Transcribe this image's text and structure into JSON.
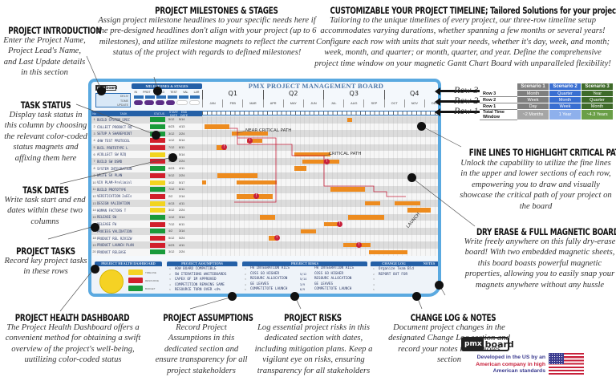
{
  "callouts": {
    "intro": {
      "title": "PROJECT INTRODUCTION",
      "text": "Enter the Project Name, Project Lead's Name, and Last Update details in this section"
    },
    "milestones": {
      "title": "PROJECT MILESTONES & STAGES",
      "text": "Assign project milestone headlines to your specific needs here if the pre-designed headlines don't align with your project (up to 6 milestones), and utilize milestone magnets to reflect the current status of the project with regards to defined milestones!"
    },
    "timeline": {
      "title": "CUSTOMIZABLE YOUR PROJECT TIMELINE; Tailored Solutions for your project needs",
      "text": "Tailoring to the unique timelines of every project, our three-row timeline setup accommodates varying durations, whether spanning a few months or several years! Configure each row with units that suit your needs, whether it's day, week, and month; week, month, and quarter; or month, quarter, and year. Define the comprehensive project time window on your magnetic Gantt Chart Board with unparalleled flexibility!"
    },
    "status": {
      "title": "TASK STATUS",
      "text": "Display task status in this column by choosing the relevant color-coded status magnets and affixing them here"
    },
    "dates": {
      "title": "TASK DATES",
      "text": "Write task start and end dates within these two columns"
    },
    "tasks": {
      "title": "PROJECT TASKS",
      "text": "Record key project tasks in these rows"
    },
    "health": {
      "title": "PROJECT HEALTH DASHBOARD",
      "text": "The Project Health Dashboard offers a convenient method for obtaining a swift overview of the project's well-being, uutilizing color-coded status"
    },
    "assumptions": {
      "title": "PROJECT ASSUMPTIONS",
      "text": "Record Project Assumptions in this dedicated section and ensure transparency for all project stakeholders"
    },
    "risks": {
      "title": "PROJECT RISKS",
      "text": "Log essential project risks in this dedicated section with dates, including mitigation plans. Keep a vigilant eye on risks, ensuring transparency for all stakeholders"
    },
    "changelog": {
      "title": "CHANGE LOG & NOTES",
      "text": "Document project changes in the designated Change Log section and record your notes in the Notes section"
    },
    "critical": {
      "title": "FINE LINES TO HIGHLIGHT CRITICAL PATH",
      "text": "Unlock the capability to utilize the fine lines in the upper and lower sections of each row, empowering you to draw and visually showcase the critical path of your project on the board"
    },
    "dryerase": {
      "title": "DRY ERASE & FULL MAGNETIC BOARD",
      "text": "Write freely anywhere on this fully dry-erase board! With two embedded magnetic sheets, this board boasts powerful magnetic properties, allowing you to easily snap your magnets anywhere without any hussle"
    }
  },
  "board": {
    "title": "PMX PROJECT MANAGEMENT BOARD",
    "logo": {
      "a": "pmx",
      "b": "board"
    },
    "intro_labels": [
      "DELIV",
      "TOME",
      "UPDATE"
    ],
    "milestones_head": "MILESTONES & STAGES",
    "milestone_labels": [
      "IN",
      "PRDT",
      "BUILD",
      "TEST",
      "VAL",
      "LAR"
    ],
    "quarters": [
      "Q1",
      "Q2",
      "Q3",
      "Q4"
    ],
    "months": [
      "JAN",
      "FEB",
      "MAR",
      "APR",
      "MAY",
      "JUN",
      "JUL",
      "AUG",
      "SEP",
      "OCT",
      "NOV",
      "DEC"
    ],
    "task_head": {
      "num": "No",
      "task": "TASK",
      "status": "STATUS",
      "start": "START DATE",
      "end": "END DATE"
    },
    "tasks": [
      {
        "n": "1",
        "name": "BUILD SYSTEM SPEC",
        "status": "#1a9a3a",
        "start": "5/12",
        "end": "5/14"
      },
      {
        "n": "2",
        "name": "COLLECT PRODUCT RQ",
        "status": "#1a9a3a",
        "start": "6/23",
        "end": "4/13"
      },
      {
        "n": "3",
        "name": "SETUP A SHAREPOINT",
        "status": "#1a9a3a",
        "start": "3/12",
        "end": "2/24"
      },
      {
        "n": "4",
        "name": "4HW TEST PROTOCOL",
        "status": "#d11f2c",
        "start": "1/12",
        "end": "5/14"
      },
      {
        "n": "5",
        "name": "BUIL PROTOTYPE L",
        "status": "#d11f2c",
        "start": "7/12",
        "end": "6/11"
      },
      {
        "n": "6",
        "name": "ACOLLECT SW RZQ",
        "status": "#f2d41f",
        "start": "4/2",
        "end": "5/14"
      },
      {
        "n": "7",
        "name": "BUILD SW DSMD",
        "status": "#d11f2c",
        "start": "5/12",
        "end": "2/24"
      },
      {
        "n": "8",
        "name": "SYSTEM INTEGRATION",
        "status": "#1a9a3a",
        "start": "6/23",
        "end": "4/11"
      },
      {
        "n": "9",
        "name": "WRITE SV PLAN",
        "status": "#d11f2c",
        "start": "5/12",
        "end": "2/24"
      },
      {
        "n": "10",
        "name": "VIV PLAM-Preliminl",
        "status": "#f2d41f",
        "start": "1/12",
        "end": "5/17"
      },
      {
        "n": "11",
        "name": "BUILD PROTOTYPE",
        "status": "#1a9a3a",
        "start": "7/12",
        "end": "6/11"
      },
      {
        "n": "12",
        "name": "VERIFICATION 2xECs",
        "status": "#d11f2c",
        "start": "2/2",
        "end": "2/14"
      },
      {
        "n": "13",
        "name": "DESIGN VALIDATION",
        "status": "#f2d41f",
        "start": "6/13",
        "end": "4/11"
      },
      {
        "n": "14",
        "name": "HOMAN FACTORS T",
        "status": "#f2d41f",
        "start": "3/12",
        "end": "2/24"
      },
      {
        "n": "15",
        "name": "RELEASE SW",
        "status": "#1a9a3a",
        "start": "1/12",
        "end": "3/14"
      },
      {
        "n": "16",
        "name": "RELEASE FW",
        "status": "#d11f2c",
        "start": "7/12",
        "end": "6/11"
      },
      {
        "n": "17",
        "name": "PROCESS VALIDATION",
        "status": "#1a9a3a",
        "start": "4/2",
        "end": "3/14"
      },
      {
        "n": "18",
        "name": "PRODUCT REL RZVIZW",
        "status": "#d11f2c",
        "start": "5/12",
        "end": "5/24"
      },
      {
        "n": "19",
        "name": "PRODUCT LAUNCH PLAN",
        "status": "#d11f2c",
        "start": "6/23",
        "end": "4/11"
      },
      {
        "n": "20",
        "name": "PRODUCT RELEASE",
        "status": "#1a9a3a",
        "start": "3/12",
        "end": "2/24"
      }
    ],
    "annotations": {
      "near_critical": "NEAR CRITICAL PATH",
      "critical": "CRITICAL PATH",
      "launch": "LAUNCH"
    },
    "health": {
      "head": "PROJECT HEALTH DASHBOARD",
      "gauge_label": "OVERALL STATUS",
      "labels": [
        "TIMELINE",
        "RESOURCE",
        "BUDGET"
      ]
    },
    "assumptions": {
      "head": "PROJECT ASSUMPTIONS",
      "items": [
        "HOW BOARD COMPATIBLE",
        "SW ITERATIONS WHITEBOARDS",
        "CAPEX OF 1M APPROVED",
        "COMPETITION REMAINS SAME",
        "RESOURCE TURN OVER <4%"
      ]
    },
    "risks": {
      "head": "PROJECT RISKS",
      "col_risk": "Risk Definition",
      "col_date": "Date",
      "col_mit": "Mitigation",
      "items": [
        {
          "risk": "FW INTEGRATION AILS",
          "date": "",
          "mit": "FW INTEGRATION AILS"
        },
        {
          "risk": "COSS GO HIGHER",
          "date": "5/12",
          "mit": "COSS GO HIGHER"
        },
        {
          "risk": "RESOURC ALLOCATION",
          "date": "5/14",
          "mit": "RESOURC ALLOCATION"
        },
        {
          "risk": "GE LEAVES",
          "date": "3/9",
          "mit": "GE LEAVES"
        },
        {
          "risk": "COMPETITOTE LAUNCH",
          "date": "6/9",
          "mit": "COMPETITOTE LAUNCH"
        }
      ]
    },
    "changelog": {
      "head": "CHANGE LOG",
      "date_col": "Date",
      "items": [
        "Organize Team Bld",
        "REPORT OUT FOR"
      ]
    },
    "notes": {
      "head": "NOTES"
    }
  },
  "row_labels": [
    "Row 3",
    "Row 2",
    "Row 1"
  ],
  "scenario_table": {
    "headers": [
      "Scenario 1",
      "Scenario 2",
      "Scenario 3"
    ],
    "rows": [
      {
        "label": "Row 3",
        "values": [
          "Month",
          "Quarter",
          "Year"
        ]
      },
      {
        "label": "Row 2",
        "values": [
          "Week",
          "Month",
          "Quarter"
        ]
      },
      {
        "label": "Row 1",
        "values": [
          "Day",
          "Week",
          "Month"
        ]
      },
      {
        "label": "Total Time Window",
        "values": [
          "~2 Months",
          "1 Year",
          "~4.3 Years"
        ]
      }
    ]
  },
  "brand": {
    "a": "pmx",
    "b": "board",
    "tagline": [
      "Developed in the US by an",
      "American company in high",
      "American standards"
    ]
  }
}
